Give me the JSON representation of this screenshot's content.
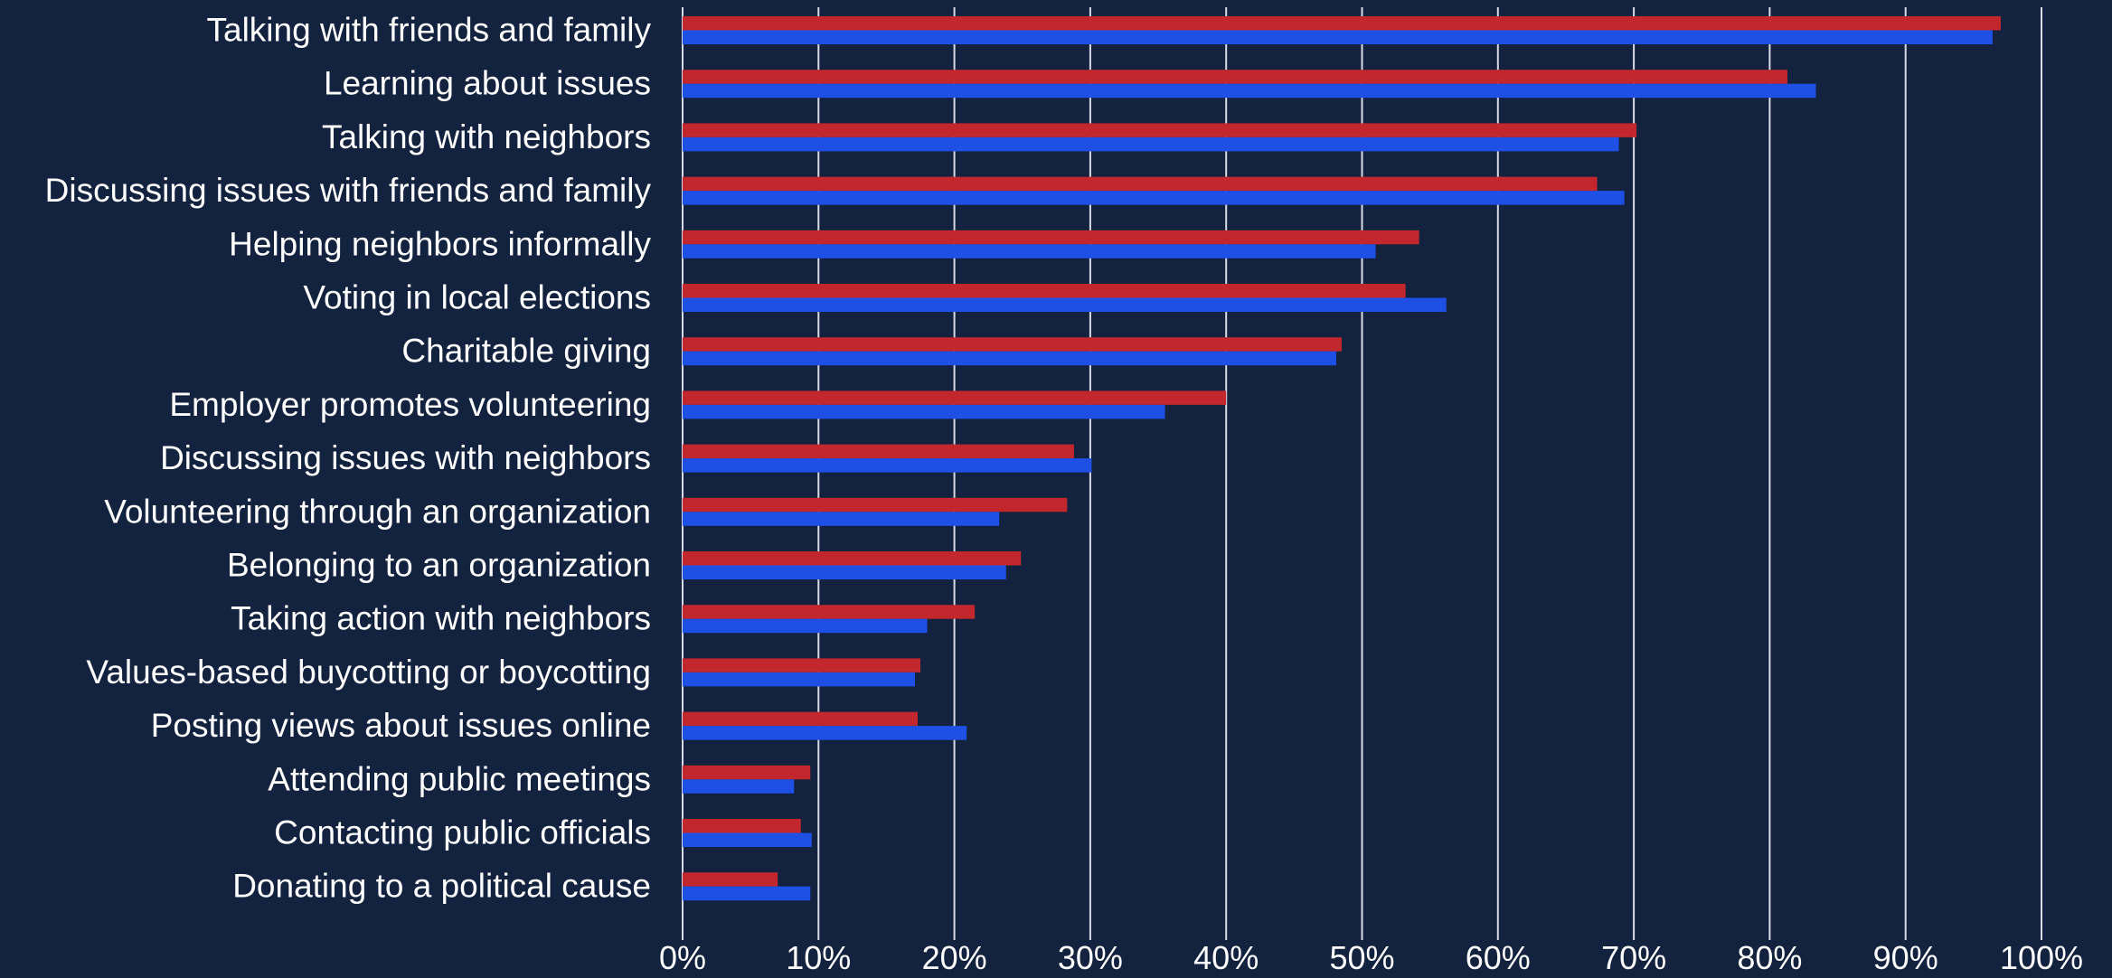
{
  "chart_data": {
    "type": "bar",
    "orientation": "horizontal",
    "title": "",
    "xlabel": "",
    "ylabel": "",
    "xlim": [
      0,
      100
    ],
    "x_ticks": [
      "0%",
      "10%",
      "20%",
      "30%",
      "40%",
      "50%",
      "60%",
      "70%",
      "80%",
      "90%",
      "100%"
    ],
    "grid": true,
    "legend": "none",
    "categories": [
      "Talking with friends and family",
      "Learning about issues",
      "Talking with neighbors",
      "Discussing issues with friends and family",
      "Helping neighbors informally",
      "Voting in local elections",
      "Charitable giving",
      "Employer promotes volunteering",
      "Discussing issues with neighbors",
      "Volunteering through an organization",
      "Belonging to an organization",
      "Taking action with neighbors",
      "Values-based buycotting or boycotting",
      "Posting views about issues online",
      "Attending public meetings",
      "Contacting public officials",
      "Donating to a political cause"
    ],
    "series": [
      {
        "color": "#c1272d",
        "values": [
          97,
          81.3,
          70.2,
          67.3,
          54.2,
          53.2,
          48.5,
          40,
          28.8,
          28.3,
          24.9,
          21.5,
          17.5,
          17.3,
          9.4,
          8.7,
          7
        ]
      },
      {
        "color": "#1e50e6",
        "values": [
          96.4,
          83.4,
          68.9,
          69.3,
          51,
          56.2,
          48.1,
          35.5,
          30.1,
          23.3,
          23.8,
          18,
          17.1,
          20.9,
          8.2,
          9.5,
          9.4
        ]
      }
    ]
  },
  "colors": {
    "background": "#13223f",
    "gridline": "#d7dbe6",
    "text": "#ffffff"
  }
}
